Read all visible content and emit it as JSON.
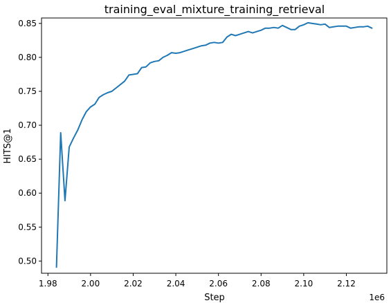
{
  "chart_data": {
    "type": "line",
    "title": "training_eval_mixture_training_retrieval",
    "xlabel": "Step",
    "ylabel": "HITS@1",
    "x_offset_label": "1e6",
    "xlim": [
      1.977,
      2.139
    ],
    "ylim": [
      0.482,
      0.858
    ],
    "x_ticks": [
      1.98,
      2.0,
      2.02,
      2.04,
      2.06,
      2.08,
      2.1,
      2.12
    ],
    "x_tick_labels": [
      "1.98",
      "2.00",
      "2.02",
      "2.04",
      "2.06",
      "2.08",
      "2.10",
      "2.12"
    ],
    "y_ticks": [
      0.5,
      0.55,
      0.6,
      0.65,
      0.7,
      0.75,
      0.8,
      0.85
    ],
    "y_tick_labels": [
      "0.50",
      "0.55",
      "0.60",
      "0.65",
      "0.70",
      "0.75",
      "0.80",
      "0.85"
    ],
    "grid": false,
    "color": "#1f77b4",
    "series": [
      {
        "x": [
          1.984,
          1.986,
          1.988,
          1.99,
          1.992,
          1.994,
          1.996,
          1.998,
          2.0,
          2.002,
          2.004,
          2.006,
          2.008,
          2.01,
          2.012,
          2.014,
          2.016,
          2.018,
          2.02,
          2.022,
          2.024,
          2.026,
          2.028,
          2.03,
          2.032,
          2.034,
          2.036,
          2.038,
          2.04,
          2.042,
          2.044,
          2.046,
          2.048,
          2.05,
          2.052,
          2.054,
          2.056,
          2.058,
          2.06,
          2.062,
          2.064,
          2.066,
          2.068,
          2.07,
          2.072,
          2.074,
          2.076,
          2.078,
          2.08,
          2.082,
          2.084,
          2.086,
          2.088,
          2.09,
          2.092,
          2.094,
          2.096,
          2.098,
          2.1,
          2.102,
          2.104,
          2.106,
          2.108,
          2.11,
          2.112,
          2.114,
          2.116,
          2.118,
          2.12,
          2.122,
          2.124,
          2.126,
          2.128,
          2.13,
          2.132
        ],
        "y": [
          0.491,
          0.689,
          0.589,
          0.668,
          0.681,
          0.693,
          0.708,
          0.72,
          0.727,
          0.731,
          0.741,
          0.745,
          0.748,
          0.75,
          0.755,
          0.76,
          0.765,
          0.774,
          0.775,
          0.776,
          0.785,
          0.786,
          0.792,
          0.794,
          0.795,
          0.8,
          0.803,
          0.807,
          0.806,
          0.807,
          0.809,
          0.811,
          0.813,
          0.815,
          0.817,
          0.818,
          0.821,
          0.822,
          0.821,
          0.822,
          0.83,
          0.834,
          0.832,
          0.834,
          0.836,
          0.838,
          0.836,
          0.838,
          0.84,
          0.843,
          0.843,
          0.844,
          0.843,
          0.847,
          0.844,
          0.841,
          0.841,
          0.846,
          0.848,
          0.851,
          0.85,
          0.849,
          0.848,
          0.849,
          0.844,
          0.845,
          0.846,
          0.846,
          0.846,
          0.843,
          0.844,
          0.845,
          0.845,
          0.846,
          0.843
        ]
      }
    ]
  }
}
